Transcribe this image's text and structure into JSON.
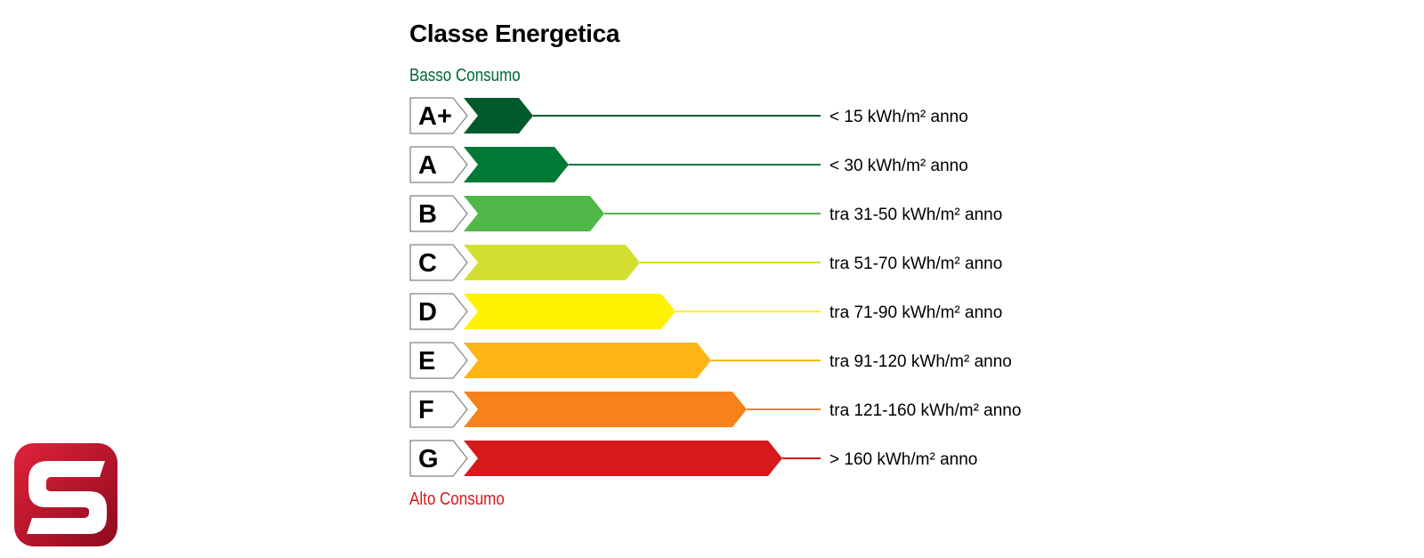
{
  "title": "Classe Energetica",
  "scale": {
    "low_label": "Basso Consumo",
    "high_label": "Alto Consumo",
    "low_color": "#006837",
    "high_color": "#d7191c"
  },
  "classes": [
    {
      "letter": "A+",
      "range": "< 15 kWh/m² anno",
      "color": "#005a2b",
      "rank": 1
    },
    {
      "letter": "A",
      "range": "< 30 kWh/m² anno",
      "color": "#007a36",
      "rank": 2
    },
    {
      "letter": "B",
      "range": "tra 31-50 kWh/m² anno",
      "color": "#4fb848",
      "rank": 3
    },
    {
      "letter": "C",
      "range": "tra 51-70 kWh/m² anno",
      "color": "#d4df31",
      "rank": 4
    },
    {
      "letter": "D",
      "range": "tra 71-90 kWh/m² anno",
      "color": "#fff200",
      "rank": 5
    },
    {
      "letter": "E",
      "range": "tra 91-120 kWh/m² anno",
      "color": "#fdb515",
      "rank": 6
    },
    {
      "letter": "F",
      "range": "tra 121-160 kWh/m² anno",
      "color": "#f7821b",
      "rank": 7
    },
    {
      "letter": "G",
      "range": "> 160 kWh/m² anno",
      "color": "#d7191c",
      "rank": 8
    }
  ],
  "logo": {
    "icon": "s-logo-icon",
    "color": "#c8102e"
  }
}
